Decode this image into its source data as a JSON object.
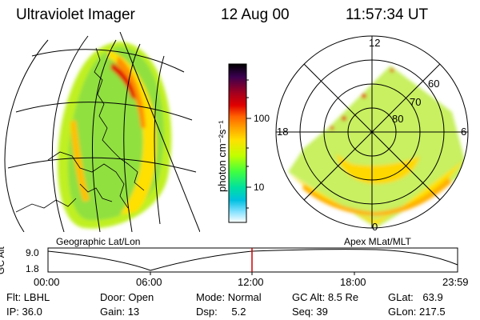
{
  "header": {
    "title": "Ultraviolet Imager",
    "date": "12 Aug 00",
    "time": "11:57:34 UT"
  },
  "colorbar": {
    "unit_label": "photon cm⁻²s⁻¹",
    "ticks": [
      "100",
      "10"
    ],
    "colors": [
      "#000000",
      "#3a0050",
      "#a00020",
      "#e00000",
      "#ff6000",
      "#ffa000",
      "#ffe000",
      "#c0ff00",
      "#40ff40",
      "#00e0a0",
      "#00c0e0",
      "#80e0ff",
      "#ffffff"
    ]
  },
  "geo_panel": {
    "label": "Geographic Lat/Lon"
  },
  "polar_panel": {
    "label": "Apex MLat/MLT",
    "mlt_labels": [
      "12",
      "18",
      "6",
      "0"
    ],
    "lat_labels": [
      "60",
      "70",
      "80"
    ]
  },
  "orbit_plot": {
    "ylabel": "GC Alt",
    "yticks": [
      "9.0",
      "1.8"
    ],
    "xticks": [
      "00:00",
      "06:00",
      "12:00",
      "18:00",
      "23:59"
    ],
    "current_time_marker": "12:00"
  },
  "info": {
    "filter": {
      "label": "Flt:",
      "value": "LBHL"
    },
    "ip": {
      "label": "IP:",
      "value": "36.0"
    },
    "door": {
      "label": "Door:",
      "value": "Open"
    },
    "gain": {
      "label": "Gain:",
      "value": "13"
    },
    "mode": {
      "label": "Mode:",
      "value": "Normal"
    },
    "dsp": {
      "label": "Dsp:",
      "value": "5.2"
    },
    "gc_alt": {
      "label": "GC Alt:",
      "value": "8.5 Re"
    },
    "seq": {
      "label": "Seq:",
      "value": "39"
    },
    "glat": {
      "label": "GLat:",
      "value": "63.9"
    },
    "glon": {
      "label": "GLon:",
      "value": "217.5"
    }
  }
}
